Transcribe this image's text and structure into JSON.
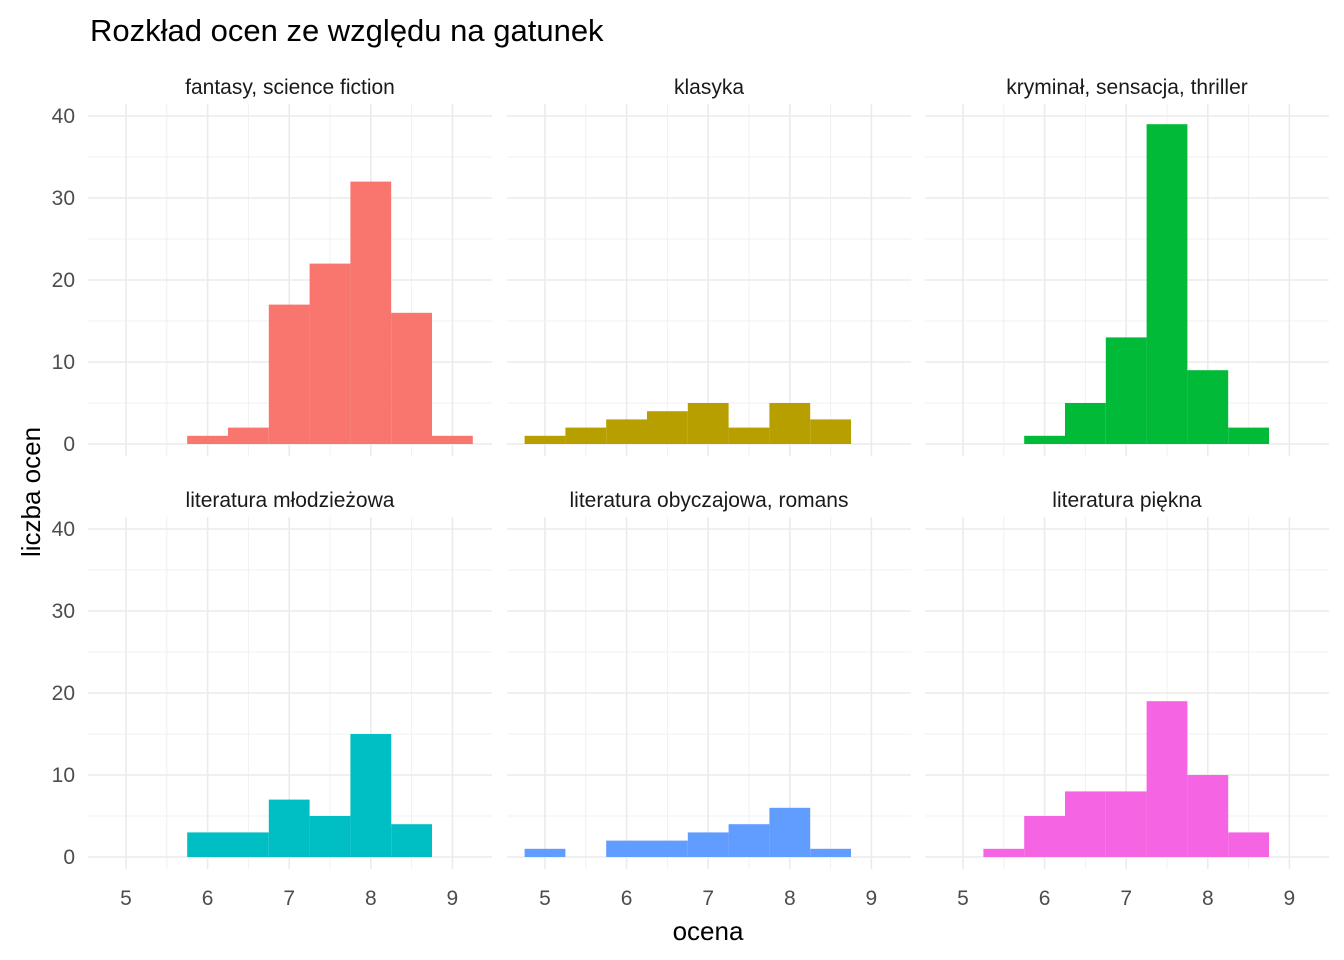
{
  "chart_data": {
    "type": "bar",
    "title": "Rozkład ocen ze względu na gatunek",
    "xlabel": "ocena",
    "ylabel": "liczba ocen",
    "xlim": [
      4.6,
      9.4
    ],
    "ylim": [
      0,
      40
    ],
    "x_ticks": [
      "5",
      "6",
      "7",
      "8",
      "9"
    ],
    "y_ticks": [
      "0",
      "10",
      "20",
      "30",
      "40"
    ],
    "bin_width": 0.5,
    "grid": true,
    "legend": "none",
    "panels": [
      {
        "name": "fantasy, science fiction",
        "color": "#F8766D",
        "bins": [
          [
            5.75,
            6.25,
            1
          ],
          [
            6.25,
            6.75,
            2
          ],
          [
            6.75,
            7.25,
            17
          ],
          [
            7.25,
            7.75,
            22
          ],
          [
            7.75,
            8.25,
            32
          ],
          [
            8.25,
            8.75,
            16
          ],
          [
            8.75,
            9.25,
            1
          ]
        ]
      },
      {
        "name": "klasyka",
        "color": "#B79F00",
        "bins": [
          [
            4.75,
            5.25,
            1
          ],
          [
            5.25,
            5.75,
            2
          ],
          [
            5.75,
            6.25,
            3
          ],
          [
            6.25,
            6.75,
            4
          ],
          [
            6.75,
            7.25,
            5
          ],
          [
            7.25,
            7.75,
            2
          ],
          [
            7.75,
            8.25,
            5
          ],
          [
            8.25,
            8.75,
            3
          ]
        ]
      },
      {
        "name": "kryminał, sensacja, thriller",
        "color": "#00BA38",
        "bins": [
          [
            5.75,
            6.25,
            1
          ],
          [
            6.25,
            6.75,
            5
          ],
          [
            6.75,
            7.25,
            13
          ],
          [
            7.25,
            7.75,
            39
          ],
          [
            7.75,
            8.25,
            9
          ],
          [
            8.25,
            8.75,
            2
          ]
        ]
      },
      {
        "name": "literatura młodzieżowa",
        "color": "#00BFC4",
        "bins": [
          [
            5.75,
            6.25,
            3
          ],
          [
            6.25,
            6.75,
            3
          ],
          [
            6.75,
            7.25,
            7
          ],
          [
            7.25,
            7.75,
            5
          ],
          [
            7.75,
            8.25,
            15
          ],
          [
            8.25,
            8.75,
            4
          ]
        ]
      },
      {
        "name": "literatura obyczajowa, romans",
        "color": "#619CFF",
        "bins": [
          [
            4.75,
            5.25,
            1
          ],
          [
            5.75,
            6.25,
            2
          ],
          [
            6.25,
            6.75,
            2
          ],
          [
            6.75,
            7.25,
            3
          ],
          [
            7.25,
            7.75,
            4
          ],
          [
            7.75,
            8.25,
            6
          ],
          [
            8.25,
            8.75,
            1
          ]
        ]
      },
      {
        "name": "literatura piękna",
        "color": "#F564E3",
        "bins": [
          [
            5.25,
            5.75,
            1
          ],
          [
            5.75,
            6.25,
            5
          ],
          [
            6.25,
            6.75,
            8
          ],
          [
            6.75,
            7.25,
            8
          ],
          [
            7.25,
            7.75,
            19
          ],
          [
            7.75,
            8.25,
            10
          ],
          [
            8.25,
            8.75,
            3
          ]
        ]
      }
    ]
  }
}
